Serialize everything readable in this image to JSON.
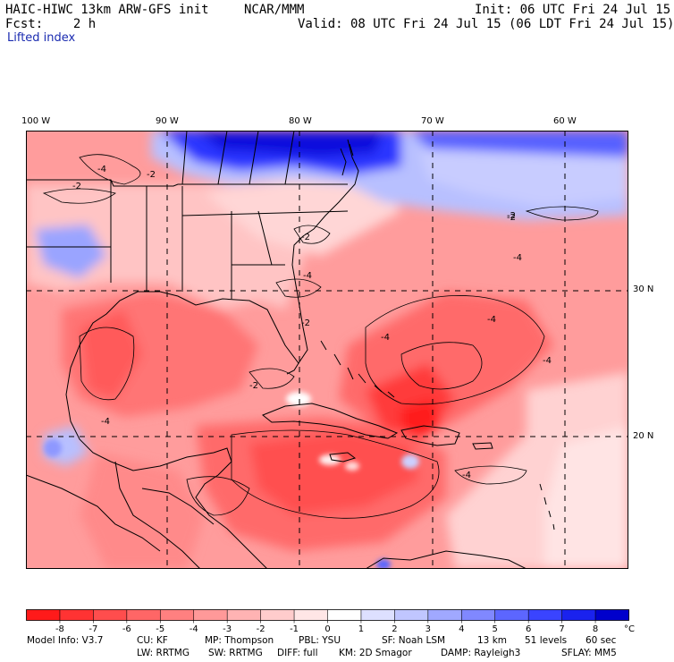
{
  "header": {
    "model": "HAIC-HIWC 13km ARW-GFS init",
    "org": "NCAR/MMM",
    "init": "Init: 06 UTC Fri 24 Jul 15",
    "fcst": "Fcst:    2 h",
    "valid": "Valid: 08 UTC Fri 24 Jul 15 (06 LDT Fri 24 Jul 15)",
    "field": "Lifted index"
  },
  "map": {
    "lon_labels": [
      "100 W",
      "90 W",
      "80 W",
      "70 W",
      "60 W"
    ],
    "lat_labels": [
      "30 N",
      "20 N"
    ],
    "contour_labels": [
      "-4",
      "-2",
      "-2",
      "-2",
      "-2",
      "-2",
      "-2",
      "-4",
      "-4",
      "-4",
      "-4",
      "-4",
      "-2",
      "-4",
      "-4"
    ],
    "colors": {
      "land_line": "#000000",
      "grid_line": "#000000"
    }
  },
  "legend": {
    "ticks": [
      "-8",
      "-7",
      "-6",
      "-5",
      "-4",
      "-3",
      "-2",
      "-1",
      "0",
      "1",
      "2",
      "3",
      "4",
      "5",
      "6",
      "7",
      "8"
    ],
    "unit": "°C",
    "colors": [
      "#ff1a1a",
      "#ff3333",
      "#ff4d4d",
      "#ff6666",
      "#ff8080",
      "#ff9999",
      "#ffb3b3",
      "#ffcccc",
      "#ffe6e6",
      "#ffffff",
      "#dde0ff",
      "#c0c6ff",
      "#a0a8ff",
      "#8088ff",
      "#5c66ff",
      "#3a44ff",
      "#1a22ee",
      "#0000cc"
    ]
  },
  "footer": {
    "line1": {
      "model_info": "Model Info: V3.7",
      "cu": "CU: KF",
      "mp": "MP: Thompson",
      "pbl": "PBL: YSU",
      "sf": "SF: Noah LSM",
      "res": "13 km",
      "levels": "51 levels",
      "dt": "60 sec"
    },
    "line2": {
      "lw": "LW: RRTMG",
      "sw": "SW: RRTMG",
      "diff": "DIFF: full",
      "km": "KM: 2D Smagor",
      "damp": "DAMP: Rayleigh3",
      "sflay": "SFLAY: MM5"
    }
  }
}
